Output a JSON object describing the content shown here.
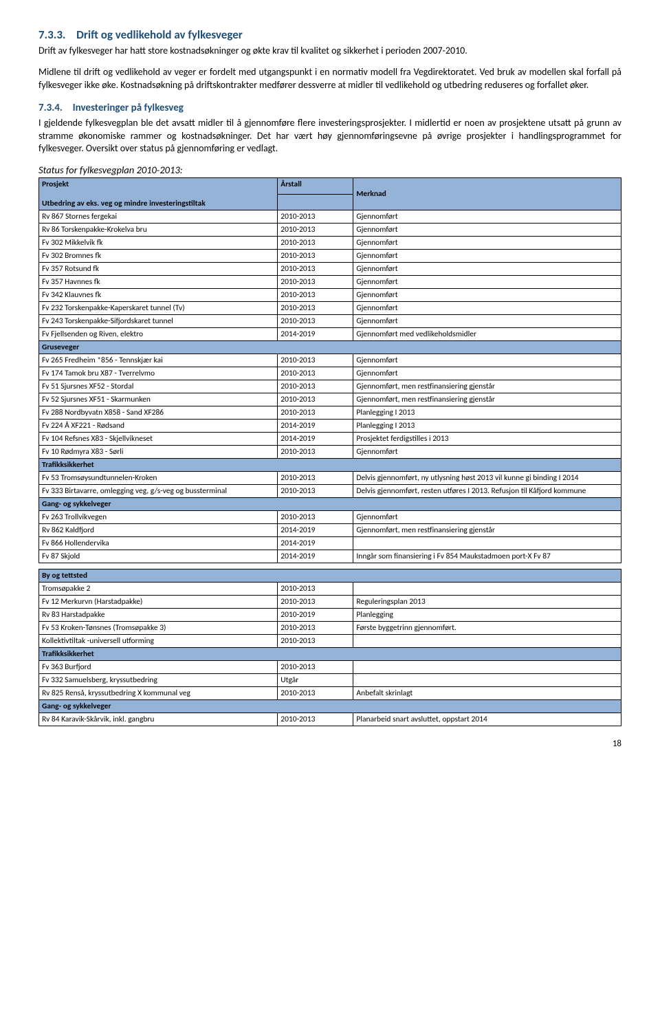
{
  "section733": {
    "number": "7.3.3.",
    "title": "Drift og vedlikehold av fylkesveger",
    "para1": "Drift av fylkesveger har hatt store kostnadsøkninger og økte krav til kvalitet og sikkerhet i perioden 2007-2010.",
    "para2": "Midlene til drift og vedlikehold av veger er fordelt med utgangspunkt i en normativ modell fra Vegdirektoratet. Ved bruk av modellen skal forfall på fylkesveger ikke øke. Kostnadsøkning på driftskontrakter medfører dessverre at midler til vedlikehold og utbedring reduseres og forfallet øker."
  },
  "section734": {
    "number": "7.3.4.",
    "title": "Investeringer på fylkesveg",
    "para1": "I gjeldende fylkesvegplan ble det avsatt midler til å gjennomføre flere investeringsprosjekter. I midlertid er noen av prosjektene utsatt på grunn av stramme økonomiske rammer og kostnadsøkninger. Det har vært høy gjennomføringsevne på øvrige prosjekter i handlingsprogrammet for fylkesveger. Oversikt over status på gjennomføring er vedlagt."
  },
  "status_title": "Status for fylkesvegplan 2010-2013:",
  "tableA": {
    "h_project": "Prosjekt",
    "h_year": "Årstall",
    "h_note": "Merknad",
    "sub1": "Utbedring av eks. veg og mindre investeringstiltak",
    "rows1": [
      [
        "Rv 867 Stornes fergekai",
        "2010-2013",
        "Gjennomført"
      ],
      [
        "Rv 86 Torskenpakke-Krokelva bru",
        "2010-2013",
        "Gjennomført"
      ],
      [
        "Fv 302 Mikkelvik fk",
        "2010-2013",
        "Gjennomført"
      ],
      [
        "Fv 302 Bromnes fk",
        "2010-2013",
        "Gjennomført"
      ],
      [
        "Fv 357 Rotsund fk",
        "2010-2013",
        "Gjennomført"
      ],
      [
        "Fv 357 Havnnes fk",
        "2010-2013",
        "Gjennomført"
      ],
      [
        "Fv 342 Klauvnes fk",
        "2010-2013",
        "Gjennomført"
      ],
      [
        "Fv 232 Torskenpakke-Kaperskaret tunnel (Tv)",
        "2010-2013",
        "Gjennomført"
      ],
      [
        "Fv 243 Torskenpakke-Sifjordskaret tunnel",
        "2010-2013",
        "Gjennomført"
      ],
      [
        "Fv Fjellsenden og Riven, elektro",
        "2014-2019",
        "Gjennomført med vedlikeholdsmidler"
      ]
    ],
    "sub2": "Gruseveger",
    "rows2": [
      [
        "Fv 265 Fredheim *856 - Tennskjær kai",
        "2010-2013",
        "Gjennomført"
      ],
      [
        "Fv 174 Tamok bru X87 - Tverrelvmo",
        "2010-2013",
        "Gjennomført"
      ],
      [
        "Fv 51 Sjursnes XF52 - Stordal",
        "2010-2013",
        "Gjennomført, men restfinansiering gjenstår"
      ],
      [
        "Fv 52 Sjursnes XF51 - Skarmunken",
        "2010-2013",
        "Gjennomført, men restfinansiering gjenstår"
      ],
      [
        "Fv 288 Nordbyvatn X858 - Sand XF286",
        "2010-2013",
        "Planlegging I 2013"
      ],
      [
        "Fv 224 Å XF221 - Rødsand",
        "2014-2019",
        "Planlegging I 2013"
      ],
      [
        "Fv 104 Refsnes X83 - Skjellvikneset",
        "2014-2019",
        "Prosjektet ferdigstilles i 2013"
      ],
      [
        "Fv 10 Rødmyra X83 - Sørli",
        "2010-2013",
        "Gjennomført"
      ]
    ],
    "sub3": "Trafikksikkerhet",
    "rows3": [
      [
        "Fv 53 Tromsøysundtunnelen-Kroken",
        "2010-2013",
        "Delvis gjennomført, ny utlysning høst 2013 vil kunne gi binding I 2014"
      ],
      [
        "Fv 333 Birtavarre, omlegging veg, g/s-veg og bussterminal",
        "2010-2013",
        "Delvis gjennomført, resten utføres I 2013. Refusjon til Kåfjord kommune"
      ]
    ],
    "sub4": "Gang- og sykkelveger",
    "rows4": [
      [
        "Fv 263 Trollvikvegen",
        "2010-2013",
        "Gjennomført"
      ],
      [
        "Rv 862 Kaldfjord",
        "2014-2019",
        "Gjennomført, men restfinansiering gjenstår"
      ],
      [
        "Fv 866 Hollendervika",
        "2014-2019",
        ""
      ],
      [
        "Fv 87 Skjold",
        "2014-2019",
        "Inngår som finansiering i Fv 854 Maukstadmoen port-X Fv 87"
      ]
    ]
  },
  "tableB": {
    "sub1": "By og tettsted",
    "rows1": [
      [
        "Tromsøpakke 2",
        "2010-2013",
        ""
      ],
      [
        "Fv 12 Merkurvn (Harstadpakke)",
        "2010-2013",
        "Reguleringsplan 2013"
      ],
      [
        "Rv 83 Harstadpakke",
        "2010-2019",
        " Planlegging"
      ],
      [
        "Fv 53 Kroken-Tønsnes (Tromsøpakke 3)",
        "2010-2013",
        "Første byggetrinn gjennomført."
      ],
      [
        "Kollektivtiltak -universell utforming",
        "2010-2013",
        ""
      ]
    ],
    "sub2": "Trafikksikkerhet",
    "rows2": [
      [
        "Fv 363 Burfjord",
        "2010-2013",
        ""
      ],
      [
        "Fv 332 Samuelsberg, kryssutbedring",
        "Utgår",
        ""
      ],
      [
        "Rv 825 Renså, kryssutbedring X kommunal veg",
        "2010-2013",
        "Anbefalt skrinlagt"
      ]
    ],
    "sub3": "Gang- og sykkelveger",
    "rows3": [
      [
        "Rv 84 Karavik-Skårvik, inkl. gangbru",
        "2010-2013",
        "Planarbeid snart avsluttet, oppstart 2014"
      ]
    ]
  },
  "page_num": "18",
  "colors": {
    "heading_blue": "#1f4e79",
    "table_blue": "#95b3d7",
    "border": "#000000",
    "bg": "#ffffff"
  }
}
